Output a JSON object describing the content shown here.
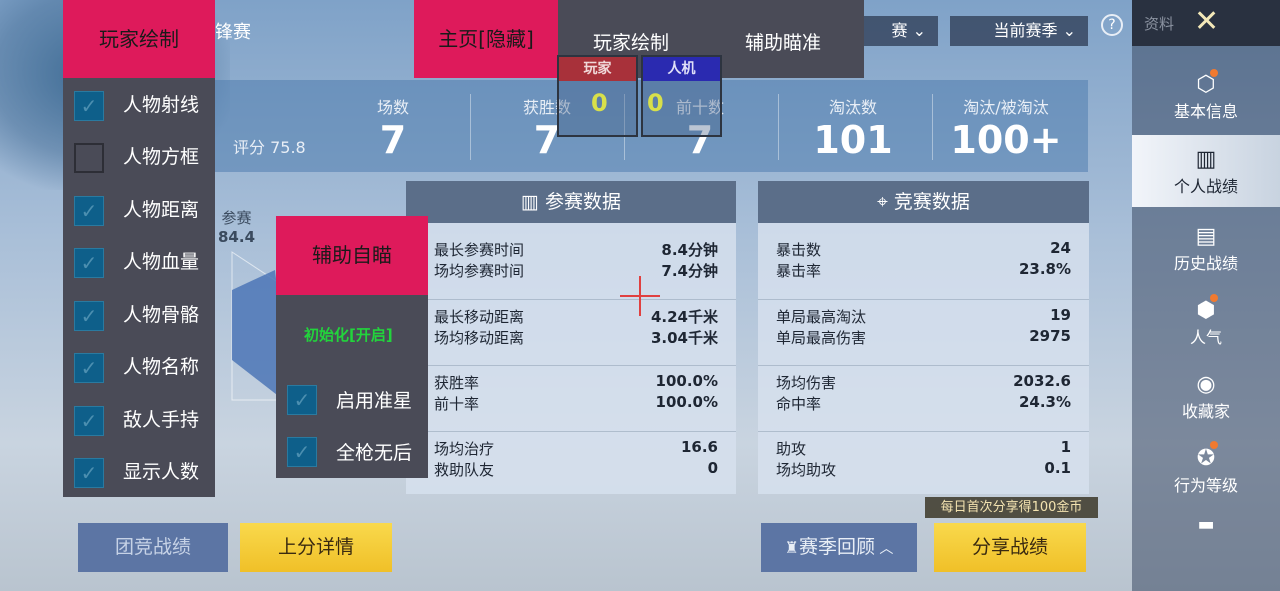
{
  "tabs": {
    "peak_partial": "锋赛"
  },
  "filters": {
    "mode_partial": "赛",
    "season": "当前赛季"
  },
  "help_icon": "question-circle-icon",
  "stats": {
    "rating_label": "评分",
    "rating": "75.8",
    "items": [
      {
        "label": "场数",
        "value": "7"
      },
      {
        "label": "获胜数",
        "value": "7"
      },
      {
        "label": "前十数",
        "value": "7"
      },
      {
        "label": "淘汰数",
        "value": "101"
      },
      {
        "label": "淘汰/被淘汰",
        "value": "100+"
      }
    ]
  },
  "radar": {
    "label": "参赛",
    "value": "84.4"
  },
  "participation": {
    "title": "参赛数据",
    "groups": [
      [
        {
          "k": "最长参赛时间",
          "v": "8.4分钟"
        },
        {
          "k": "场均参赛时间",
          "v": "7.4分钟"
        }
      ],
      [
        {
          "k": "最长移动距离",
          "v": "4.24千米"
        },
        {
          "k": "场均移动距离",
          "v": "3.04千米"
        }
      ],
      [
        {
          "k": "获胜率",
          "v": "100.0%"
        },
        {
          "k": "前十率",
          "v": "100.0%"
        }
      ],
      [
        {
          "k": "场均治疗",
          "v": "16.6"
        },
        {
          "k": "救助队友",
          "v": "0"
        }
      ]
    ]
  },
  "competition": {
    "title": "竞赛数据",
    "groups": [
      [
        {
          "k": "暴击数",
          "v": "24"
        },
        {
          "k": "暴击率",
          "v": "23.8%"
        }
      ],
      [
        {
          "k": "单局最高淘汰",
          "v": "19"
        },
        {
          "k": "单局最高伤害",
          "v": "2975"
        }
      ],
      [
        {
          "k": "场均伤害",
          "v": "2032.6"
        },
        {
          "k": "命中率",
          "v": "24.3%"
        }
      ],
      [
        {
          "k": "助攻",
          "v": "1"
        },
        {
          "k": "场均助攻",
          "v": "0.1"
        }
      ]
    ]
  },
  "sidebar": {
    "title": "资料",
    "items": [
      "基本信息",
      "个人战绩",
      "历史战绩",
      "人气",
      "收藏家",
      "行为等级"
    ],
    "selected": "个人战绩"
  },
  "buttons": {
    "team": "团竞战绩",
    "rank": "上分详情",
    "season_review": "赛季回顾",
    "share": "分享战绩",
    "share_tip": "每日首次分享得100金币"
  },
  "cheat": {
    "player_draw_title": "玩家绘制",
    "home_hidden": "主页[隐藏]",
    "tab_player_draw": "玩家绘制",
    "tab_aim_assist": "辅助瞄准",
    "player_label": "玩家",
    "player_count": "0",
    "bot_label": "人机",
    "bot_count": "0",
    "options": [
      {
        "label": "人物射线",
        "checked": true
      },
      {
        "label": "人物方框",
        "checked": false
      },
      {
        "label": "人物距离",
        "checked": true
      },
      {
        "label": "人物血量",
        "checked": true
      },
      {
        "label": "人物骨骼",
        "checked": true
      },
      {
        "label": "人物名称",
        "checked": true
      },
      {
        "label": "敌人手持",
        "checked": true
      },
      {
        "label": "显示人数",
        "checked": true
      }
    ],
    "aim_title": "辅助自瞄",
    "init_status": "初始化[开启]",
    "aim_options": [
      {
        "label": "启用准星",
        "checked": true
      },
      {
        "label": "全枪无后",
        "checked": true
      }
    ],
    "colors": {
      "pink": "#de1a5b",
      "menu": "#4a4b57",
      "check": "#0e5f8a",
      "green": "#22d43c",
      "player": "#b0303a",
      "bot": "#2a2ab0"
    }
  }
}
